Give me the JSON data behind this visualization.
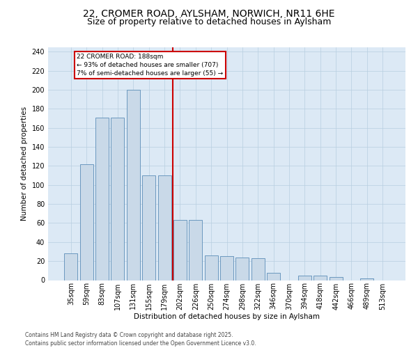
{
  "title1": "22, CROMER ROAD, AYLSHAM, NORWICH, NR11 6HE",
  "title2": "Size of property relative to detached houses in Aylsham",
  "xlabel": "Distribution of detached houses by size in Aylsham",
  "ylabel": "Number of detached properties",
  "bin_labels": [
    "35sqm",
    "59sqm",
    "83sqm",
    "107sqm",
    "131sqm",
    "155sqm",
    "179sqm",
    "202sqm",
    "226sqm",
    "250sqm",
    "274sqm",
    "298sqm",
    "322sqm",
    "346sqm",
    "370sqm",
    "394sqm",
    "418sqm",
    "442sqm",
    "466sqm",
    "489sqm",
    "513sqm"
  ],
  "bar_values": [
    28,
    122,
    171,
    171,
    200,
    110,
    110,
    63,
    63,
    26,
    25,
    24,
    23,
    8,
    0,
    5,
    5,
    3,
    0,
    2,
    0
  ],
  "bar_color": "#c9d9e8",
  "bar_edge_color": "#5b8db8",
  "vline_color": "#cc0000",
  "annotation_text": "22 CROMER ROAD: 188sqm\n← 93% of detached houses are smaller (707)\n7% of semi-detached houses are larger (55) →",
  "annotation_box_color": "#ffffff",
  "annotation_box_edge": "#cc0000",
  "footer": "Contains HM Land Registry data © Crown copyright and database right 2025.\nContains public sector information licensed under the Open Government Licence v3.0.",
  "ylim_max": 245,
  "background_color": "#dce9f5",
  "title1_fontsize": 10,
  "title2_fontsize": 9,
  "axis_label_fontsize": 7.5,
  "tick_fontsize": 7,
  "footer_fontsize": 5.5
}
